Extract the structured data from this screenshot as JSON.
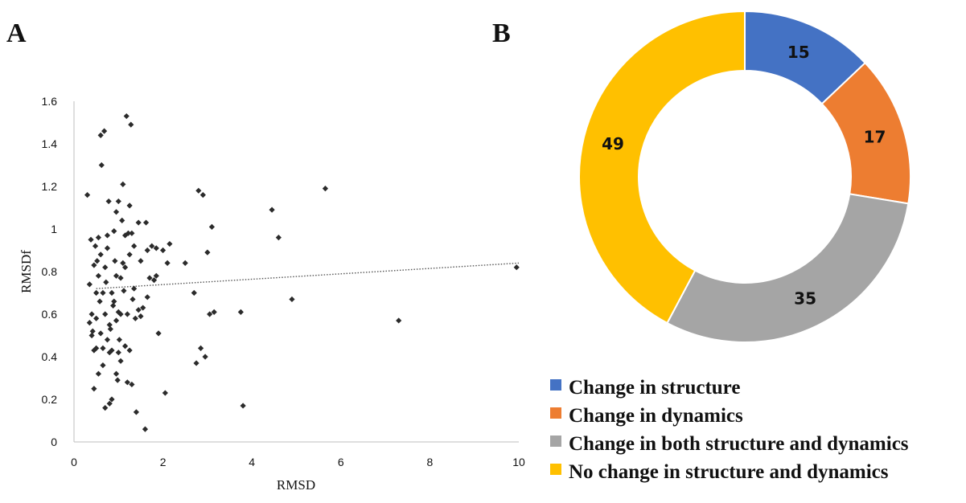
{
  "panels": {
    "a_label": "A",
    "b_label": "B"
  },
  "chart_data": [
    {
      "type": "scatter",
      "title": "",
      "xlabel": "RMSD",
      "ylabel": "RMSDf",
      "xlim": [
        0,
        10
      ],
      "ylim": [
        0,
        1.6
      ],
      "xticks": [
        0,
        2,
        4,
        6,
        8,
        10
      ],
      "xtick_labels": [
        "0",
        "2",
        "4",
        "6",
        "8",
        "10"
      ],
      "yticks": [
        0,
        0.2,
        0.4,
        0.6,
        0.8,
        1,
        1.2,
        1.4,
        1.6
      ],
      "ytick_labels": [
        "0",
        "0.2",
        "0.4",
        "0.6",
        "0.8",
        "1",
        "1.2",
        "1.4",
        "1.6"
      ],
      "grid": false,
      "marker_color": "#2b2b2b",
      "trendline": {
        "style": "dotted",
        "color": "#555555",
        "x": [
          0.5,
          10
        ],
        "y": [
          0.72,
          0.84
        ]
      },
      "points": [
        [
          0.3,
          1.16
        ],
        [
          0.35,
          0.74
        ],
        [
          0.38,
          0.95
        ],
        [
          0.4,
          0.5
        ],
        [
          0.42,
          0.52
        ],
        [
          0.45,
          0.25
        ],
        [
          0.48,
          0.92
        ],
        [
          0.5,
          0.7
        ],
        [
          0.52,
          0.85
        ],
        [
          0.55,
          0.32
        ],
        [
          0.5,
          0.58
        ],
        [
          0.58,
          0.66
        ],
        [
          0.6,
          1.44
        ],
        [
          0.62,
          1.3
        ],
        [
          0.65,
          0.44
        ],
        [
          0.68,
          1.46
        ],
        [
          0.7,
          0.16
        ],
        [
          0.72,
          0.75
        ],
        [
          0.75,
          0.97
        ],
        [
          0.78,
          1.13
        ],
        [
          0.8,
          0.18
        ],
        [
          0.82,
          0.53
        ],
        [
          0.85,
          0.43
        ],
        [
          0.88,
          0.64
        ],
        [
          0.9,
          0.99
        ],
        [
          0.92,
          0.85
        ],
        [
          0.95,
          0.32
        ],
        [
          0.98,
          0.29
        ],
        [
          1.0,
          1.13
        ],
        [
          1.02,
          0.48
        ],
        [
          1.05,
          0.6
        ],
        [
          1.08,
          1.04
        ],
        [
          1.1,
          1.21
        ],
        [
          1.12,
          0.71
        ],
        [
          1.15,
          0.82
        ],
        [
          1.18,
          1.53
        ],
        [
          1.2,
          0.28
        ],
        [
          1.22,
          0.98
        ],
        [
          1.25,
          1.11
        ],
        [
          1.28,
          1.49
        ],
        [
          1.3,
          0.27
        ],
        [
          1.32,
          0.67
        ],
        [
          1.35,
          0.92
        ],
        [
          1.38,
          0.58
        ],
        [
          1.4,
          0.14
        ],
        [
          1.45,
          1.03
        ],
        [
          1.5,
          0.85
        ],
        [
          1.55,
          0.63
        ],
        [
          1.6,
          0.06
        ],
        [
          1.62,
          1.03
        ],
        [
          1.65,
          0.9
        ],
        [
          1.7,
          0.77
        ],
        [
          1.75,
          0.92
        ],
        [
          1.8,
          0.76
        ],
        [
          1.85,
          0.91
        ],
        [
          1.9,
          0.51
        ],
        [
          2.0,
          0.9
        ],
        [
          2.05,
          0.23
        ],
        [
          2.1,
          0.84
        ],
        [
          2.15,
          0.93
        ],
        [
          2.5,
          0.84
        ],
        [
          2.75,
          0.37
        ],
        [
          2.8,
          1.18
        ],
        [
          2.85,
          0.44
        ],
        [
          2.9,
          1.16
        ],
        [
          2.95,
          0.4
        ],
        [
          3.0,
          0.89
        ],
        [
          3.05,
          0.6
        ],
        [
          3.1,
          1.01
        ],
        [
          3.15,
          0.61
        ],
        [
          3.75,
          0.61
        ],
        [
          3.8,
          0.17
        ],
        [
          4.45,
          1.09
        ],
        [
          4.6,
          0.96
        ],
        [
          4.9,
          0.67
        ],
        [
          5.65,
          1.19
        ],
        [
          7.3,
          0.57
        ],
        [
          9.95,
          0.82
        ],
        [
          0.7,
          0.6
        ],
        [
          0.85,
          0.2
        ],
        [
          0.6,
          0.88
        ],
        [
          1.0,
          0.42
        ],
        [
          1.15,
          0.45
        ],
        [
          0.75,
          0.48
        ],
        [
          0.95,
          0.78
        ],
        [
          1.25,
          0.88
        ],
        [
          0.45,
          0.43
        ],
        [
          0.55,
          0.96
        ],
        [
          1.05,
          0.38
        ],
        [
          0.65,
          0.7
        ],
        [
          0.8,
          0.55
        ],
        [
          1.35,
          0.72
        ],
        [
          0.9,
          0.66
        ],
        [
          1.5,
          0.59
        ],
        [
          0.4,
          0.6
        ],
        [
          1.1,
          0.84
        ],
        [
          0.7,
          0.82
        ],
        [
          1.2,
          0.6
        ],
        [
          0.5,
          0.44
        ],
        [
          1.3,
          0.98
        ],
        [
          0.6,
          0.51
        ],
        [
          0.95,
          0.57
        ],
        [
          1.45,
          0.62
        ],
        [
          0.85,
          0.7
        ],
        [
          1.15,
          0.97
        ],
        [
          0.75,
          0.91
        ],
        [
          0.55,
          0.78
        ],
        [
          1.05,
          0.77
        ],
        [
          2.7,
          0.7
        ],
        [
          1.85,
          0.78
        ],
        [
          0.35,
          0.56
        ],
        [
          0.95,
          1.08
        ],
        [
          1.65,
          0.68
        ],
        [
          0.65,
          0.36
        ],
        [
          1.25,
          0.43
        ],
        [
          0.45,
          0.83
        ],
        [
          0.8,
          0.42
        ],
        [
          1.0,
          0.61
        ]
      ]
    },
    {
      "type": "pie",
      "variant": "donut",
      "title": "",
      "categories": [
        "Change in structure",
        "Change in dynamics",
        "Change in both structure and dynamics",
        "No change in structure and dynamics"
      ],
      "values": [
        15,
        17,
        35,
        49
      ],
      "data_labels": [
        "15",
        "17",
        "35",
        "49"
      ],
      "colors": [
        "#4472c4",
        "#ed7d31",
        "#a5a5a5",
        "#ffc000"
      ],
      "legend_position": "bottom"
    }
  ]
}
